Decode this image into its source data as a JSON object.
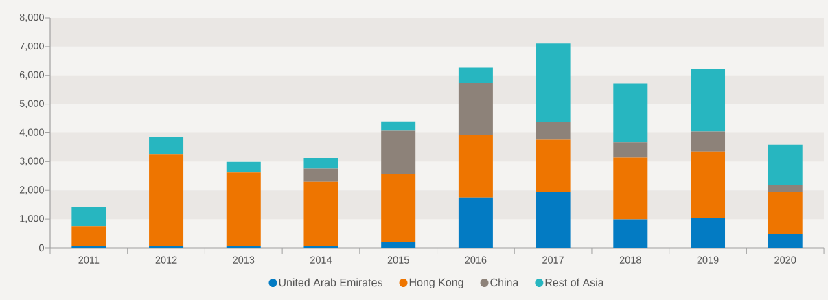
{
  "chart_data": {
    "type": "bar",
    "stacked": true,
    "categories": [
      "2011",
      "2012",
      "2013",
      "2014",
      "2015",
      "2016",
      "2017",
      "2018",
      "2019",
      "2020"
    ],
    "series": [
      {
        "name": "United Arab Emirates",
        "color": "#037bc3",
        "values": [
          50,
          70,
          50,
          70,
          190,
          1750,
          1950,
          990,
          1030,
          480
        ]
      },
      {
        "name": "Hong Kong",
        "color": "#ee7500",
        "values": [
          710,
          3170,
          2570,
          2230,
          2380,
          2170,
          1810,
          2150,
          2320,
          1480
        ]
      },
      {
        "name": "China",
        "color": "#8d8279",
        "values": [
          0,
          0,
          0,
          460,
          1500,
          1810,
          630,
          530,
          700,
          220
        ]
      },
      {
        "name": "Rest of Asia",
        "color": "#27b6c0",
        "values": [
          650,
          610,
          370,
          370,
          330,
          540,
          2720,
          2050,
          2170,
          1410
        ]
      }
    ],
    "ylim": [
      0,
      8000
    ],
    "yticks": [
      0,
      {
        "value": 1000,
        "label": "1,000"
      },
      {
        "value": 2000,
        "label": "2,000"
      },
      {
        "value": 3000,
        "label": "3,000"
      },
      {
        "value": 4000,
        "label": "4,000"
      },
      {
        "value": 5000,
        "label": "5,000"
      },
      {
        "value": 6000,
        "label": "6,000"
      },
      {
        "value": 7000,
        "label": "7,000"
      },
      {
        "value": 8000,
        "label": "8,000"
      }
    ],
    "bands": [
      {
        "axis": "y",
        "from": 1000,
        "to": 2000,
        "color": "#eae7e4"
      },
      {
        "axis": "y",
        "from": 3000,
        "to": 4000,
        "color": "#eae7e4"
      },
      {
        "axis": "y",
        "from": 5000,
        "to": 6000,
        "color": "#eae7e4"
      },
      {
        "axis": "y",
        "from": 7000,
        "to": 8000,
        "color": "#eae7e4"
      }
    ],
    "grid": false,
    "legend": "bottom"
  }
}
